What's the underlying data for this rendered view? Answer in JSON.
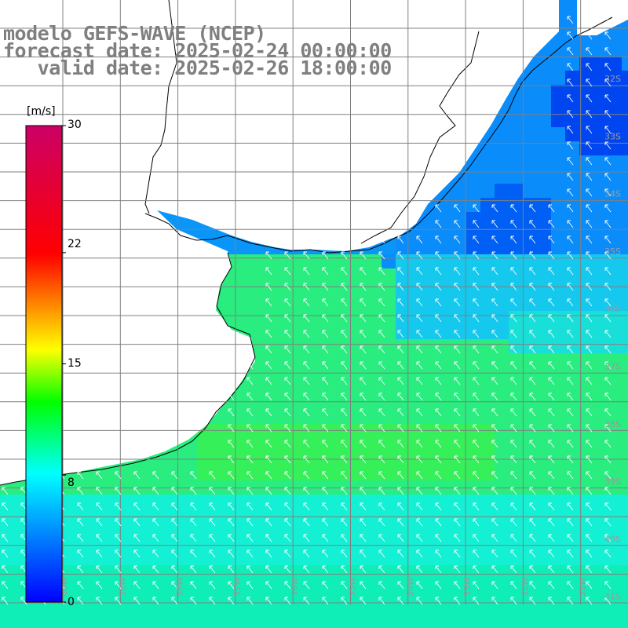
{
  "title": {
    "line1": "modelo GEFS-WAVE (NCEP)",
    "line2": "forecast date: 2025-02-24 00:00:00",
    "line3": "   valid date: 2025-02-26 18:00:00"
  },
  "colorbar": {
    "unit": "[m/s]",
    "min": 0,
    "max": 30,
    "ticks": [
      "30",
      "22",
      "15",
      "8",
      "0"
    ],
    "tick_values": [
      30,
      22,
      15,
      8,
      0
    ],
    "stops": [
      "#0000ff",
      "#00ffff",
      "#00ff00",
      "#ffff00",
      "#ff0000",
      "#cc0066"
    ]
  },
  "map": {
    "variable": "wind speed and direction",
    "lat_labels": [
      "32S",
      "33S",
      "34S",
      "35S",
      "36S",
      "37S",
      "38S",
      "39S",
      "40S",
      "41S"
    ],
    "lon_labels": [
      "60W",
      "59W",
      "58W",
      "57W",
      "56W",
      "55W",
      "54W",
      "53W",
      "52W",
      "51W"
    ],
    "colors": {
      "ocean_green": "#29ed7f",
      "ocean_cyan": "#14f0d4",
      "ocean_blue": "#0a8cfa",
      "ocean_deep": "#0046f0",
      "land": "#ffffff",
      "coast": "#000000",
      "grid": "#808080",
      "arrow": "#ffffff"
    }
  }
}
